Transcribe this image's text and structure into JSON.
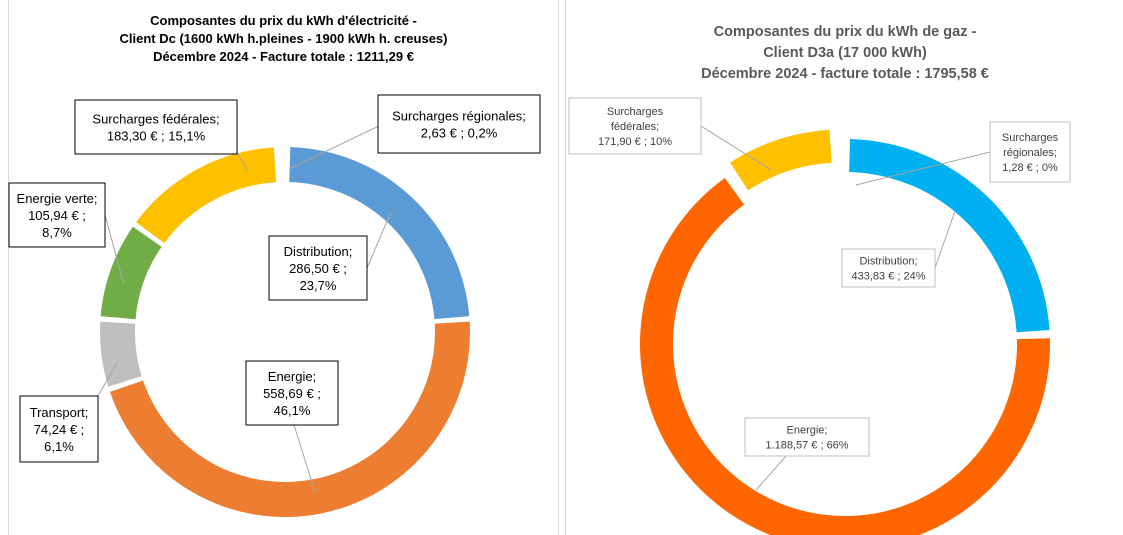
{
  "charts": {
    "elec": {
      "title_lines": [
        "Composantes du prix du kWh d'électricité -",
        "Client Dc (1600 kWh h.pleines - 1900 kWh h. creuses)",
        "Décembre 2024 - Facture totale : 1211,29 €"
      ]
    },
    "gaz": {
      "title_lines": [
        "Composantes du prix du kWh de gaz -",
        "Client D3a (17 000 kWh)",
        "Décembre 2024 - facture totale : 1795,58 €"
      ]
    }
  },
  "chart_data": [
    {
      "type": "pie",
      "variant": "doughnut",
      "title": "Composantes du prix du kWh d'électricité - Client Dc (1600 kWh h.pleines - 1900 kWh h. creuses) Décembre 2024 - Facture totale : 1211,29 €",
      "categories": [
        "Surcharges régionales",
        "Distribution",
        "Energie",
        "Transport",
        "Energie verte",
        "Surcharges fédérales"
      ],
      "values": [
        2.63,
        286.5,
        558.69,
        74.24,
        105.94,
        183.3
      ],
      "percents": [
        0.2,
        23.7,
        46.1,
        6.1,
        8.7,
        15.1
      ],
      "colors": [
        "#5b9bd5",
        "#5b9bd5",
        "#ed7d31",
        "#bfbfbf",
        "#70ad47",
        "#ffc000"
      ],
      "labels": [
        [
          "Surcharges régionales;",
          "2,63 € ; 0,2%"
        ],
        [
          "Distribution;",
          "286,50 € ;",
          "23,7%"
        ],
        [
          "Energie;",
          "558,69 € ;",
          "46,1%"
        ],
        [
          "Transport;",
          "74,24 € ;",
          "6,1%"
        ],
        [
          "Energie verte;",
          "105,94 € ;",
          "8,7%"
        ],
        [
          "Surcharges fédérales;",
          "183,30 € ; 15,1%"
        ]
      ]
    },
    {
      "type": "pie",
      "variant": "doughnut",
      "title": "Composantes du prix du kWh de gaz - Client D3a (17 000 kWh) Décembre 2024 - facture totale : 1795,58 €",
      "categories": [
        "Surcharges régionales",
        "Distribution",
        "Energie",
        "Surcharges fédérales"
      ],
      "values": [
        1.28,
        433.83,
        1188.57,
        171.9
      ],
      "percents": [
        0,
        24,
        66,
        10
      ],
      "colors": [
        "#00b0f0",
        "#00b0f0",
        "#ff6600",
        "#ffc000"
      ],
      "labels": [
        [
          "Surcharges",
          "régionales;",
          "1,28 € ; 0%"
        ],
        [
          "Distribution;",
          "433,83 € ; 24%"
        ],
        [
          "Energie;",
          "1.188,57 € ; 66%"
        ],
        [
          "Surcharges",
          "fédérales;",
          "171,90 € ; 10%"
        ]
      ]
    }
  ]
}
